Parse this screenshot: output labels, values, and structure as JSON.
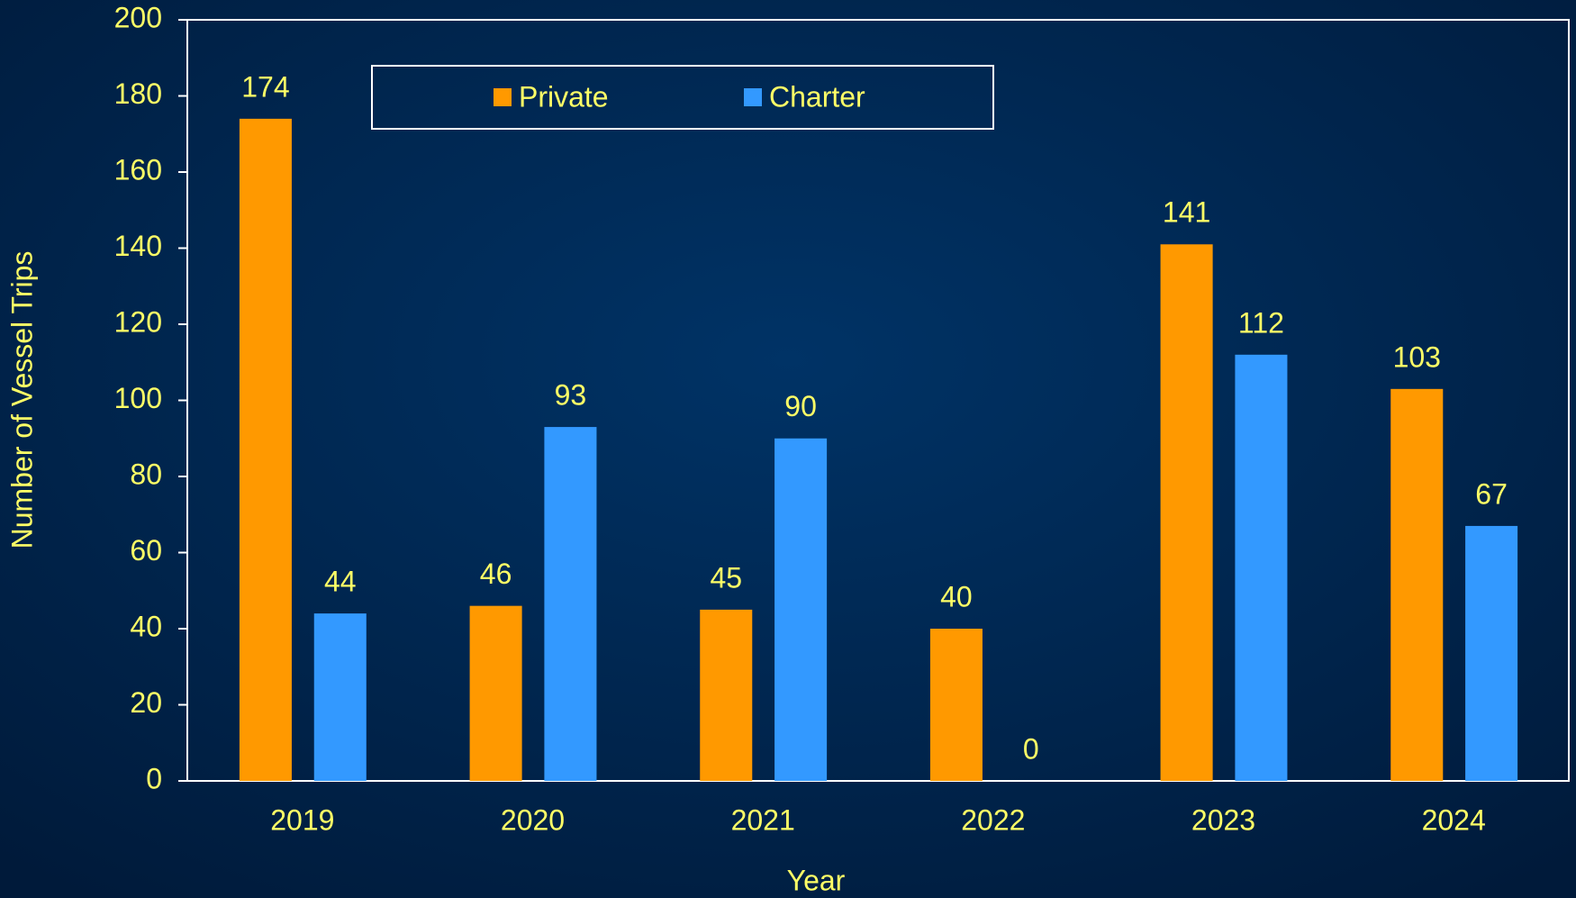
{
  "chart_data": {
    "type": "bar",
    "x_label": "Year",
    "y_label": "Number of Vessel Trips",
    "categories": [
      "2019",
      "2020",
      "2021",
      "2022",
      "2023",
      "2024"
    ],
    "series": [
      {
        "name": "Private",
        "color": "#ff9900",
        "values": [
          174,
          46,
          45,
          40,
          141,
          103
        ]
      },
      {
        "name": "Charter",
        "color": "#3399ff",
        "values": [
          44,
          93,
          90,
          0,
          112,
          67
        ]
      }
    ],
    "ylim": [
      0,
      200
    ],
    "yticks": [
      0,
      20,
      40,
      60,
      80,
      100,
      120,
      140,
      160,
      180,
      200
    ],
    "grid": false,
    "legend": "top",
    "data_labels": true
  }
}
